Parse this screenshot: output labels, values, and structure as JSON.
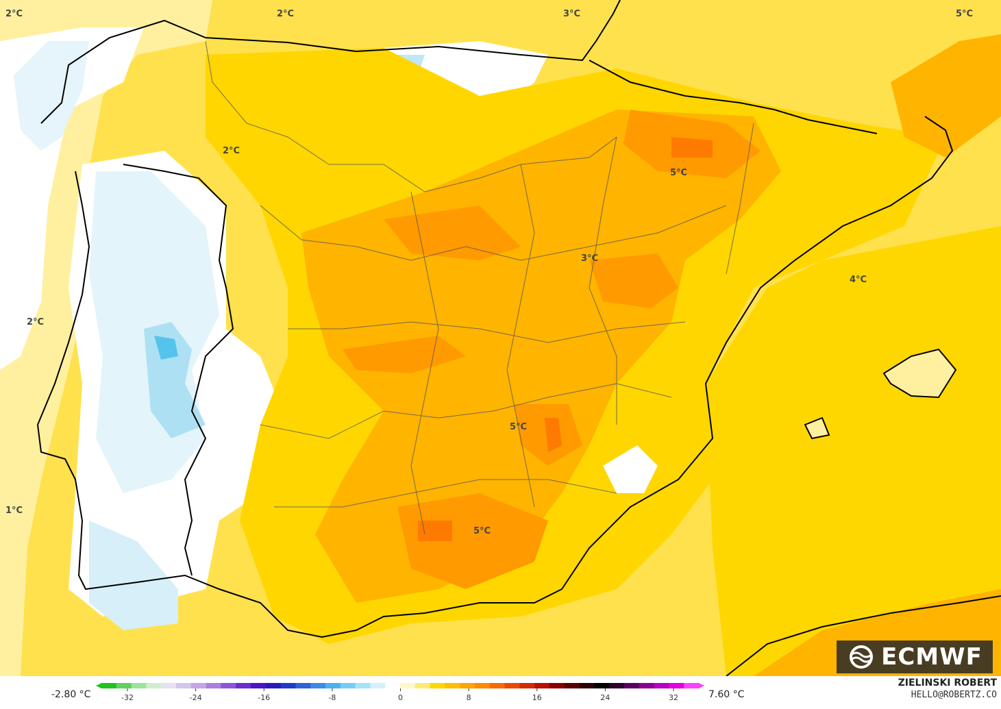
{
  "map": {
    "labels": [
      {
        "text": "2°C"
      },
      {
        "text": "2°C"
      },
      {
        "text": "3°C"
      },
      {
        "text": "5°C"
      },
      {
        "text": "2°C"
      },
      {
        "text": "5°C"
      },
      {
        "text": "3°C"
      },
      {
        "text": "4°C"
      },
      {
        "text": "2°C"
      },
      {
        "text": "5°C"
      },
      {
        "text": "1°C"
      },
      {
        "text": "5°C"
      }
    ]
  },
  "colorbar": {
    "min_label": "-2.80 °C",
    "max_label": "7.60 °C",
    "ticks": [
      "-32",
      "-24",
      "-16",
      "-8",
      "0",
      "8",
      "16",
      "24",
      "32"
    ],
    "colors": [
      "#1ec41e",
      "#5cd35c",
      "#9be39b",
      "#cfeecf",
      "#e6e0ef",
      "#d4c6ea",
      "#c2a6e6",
      "#a980e0",
      "#8d55d8",
      "#6b2ecc",
      "#4a17c0",
      "#2b1ab8",
      "#1f3ac4",
      "#2d63d6",
      "#3b8ce6",
      "#4cb1ef",
      "#74cdf4",
      "#a5e3f7",
      "#d3f1fb",
      "#ffffff",
      "#fff7c8",
      "#ffe97a",
      "#ffd700",
      "#ffbf00",
      "#ffa400",
      "#ff8a00",
      "#f76b00",
      "#e84a00",
      "#d42a00",
      "#b80f00",
      "#8a0000",
      "#5c0000",
      "#2b0000",
      "#000000",
      "#2b002b",
      "#5a0060",
      "#8a0090",
      "#b800c0",
      "#e000e0",
      "#ff40ff"
    ]
  },
  "branding": {
    "logo": "ECMWF",
    "author": "ZIELINSKI ROBERT",
    "email": "HELLO@ROBERTZ.CO"
  }
}
